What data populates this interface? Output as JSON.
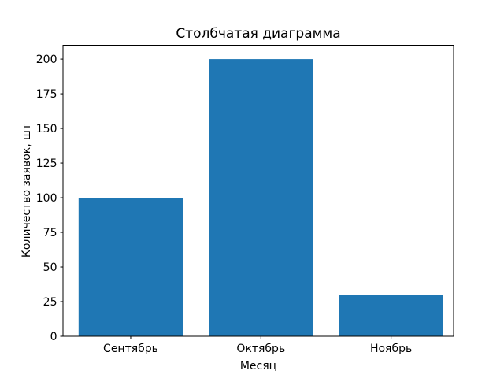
{
  "chart_data": {
    "type": "bar",
    "title": "Столбчатая диаграмма",
    "xlabel": "Месяц",
    "ylabel": "Количество заявок, шт",
    "categories": [
      "Сентябрь",
      "Октябрь",
      "Ноябрь"
    ],
    "values": [
      100,
      200,
      30
    ],
    "ylim": [
      0,
      210
    ],
    "xlim": [
      -0.52,
      2.48
    ],
    "yticks": [
      0,
      25,
      50,
      75,
      100,
      125,
      150,
      175,
      200
    ],
    "bar_width_fraction": 0.8,
    "grid": false,
    "legend": "none",
    "colors": {
      "bar": "#1f77b4",
      "background": "#ffffff",
      "spine": "#000000",
      "text": "#000000"
    }
  }
}
